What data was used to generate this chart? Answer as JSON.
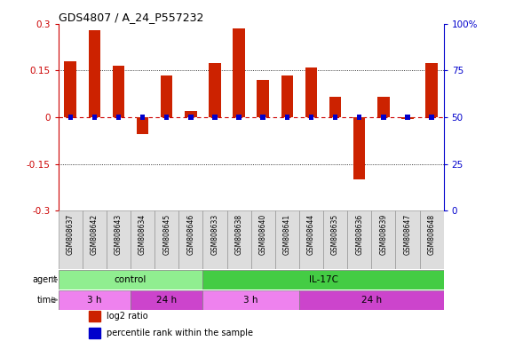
{
  "title": "GDS4807 / A_24_P557232",
  "samples": [
    "GSM808637",
    "GSM808642",
    "GSM808643",
    "GSM808634",
    "GSM808645",
    "GSM808646",
    "GSM808633",
    "GSM808638",
    "GSM808640",
    "GSM808641",
    "GSM808644",
    "GSM808635",
    "GSM808636",
    "GSM808639",
    "GSM808647",
    "GSM808648"
  ],
  "log2_ratio": [
    0.18,
    0.28,
    0.165,
    -0.055,
    0.135,
    0.02,
    0.175,
    0.285,
    0.12,
    0.135,
    0.16,
    0.065,
    -0.2,
    0.065,
    -0.005,
    0.175
  ],
  "percentile_rank": [
    55,
    57,
    56,
    47,
    52,
    48,
    54,
    56,
    53,
    54,
    55,
    47,
    43,
    51,
    47,
    55
  ],
  "agent_groups": [
    {
      "label": "control",
      "start": 0,
      "end": 6,
      "color": "#90EE90"
    },
    {
      "label": "IL-17C",
      "start": 6,
      "end": 16,
      "color": "#44CC44"
    }
  ],
  "time_groups": [
    {
      "label": "3 h",
      "start": 0,
      "end": 3,
      "color": "#EE82EE"
    },
    {
      "label": "24 h",
      "start": 3,
      "end": 6,
      "color": "#CC44CC"
    },
    {
      "label": "3 h",
      "start": 6,
      "end": 10,
      "color": "#EE82EE"
    },
    {
      "label": "24 h",
      "start": 10,
      "end": 16,
      "color": "#CC44CC"
    }
  ],
  "bar_color_red": "#CC2200",
  "bar_color_blue": "#0000CC",
  "ylim": [
    -0.3,
    0.3
  ],
  "y2lim": [
    0,
    100
  ],
  "yticks": [
    -0.3,
    -0.15,
    0.0,
    0.15,
    0.3
  ],
  "y2ticks": [
    0,
    25,
    50,
    75,
    100
  ],
  "ytick_labels": [
    "-0.3",
    "-0.15",
    "0",
    "0.15",
    "0.3"
  ],
  "y2tick_labels": [
    "0",
    "25",
    "50",
    "75",
    "100%"
  ],
  "dotted_lines": [
    -0.15,
    0.15
  ],
  "bar_width": 0.5,
  "percentile_bar_width": 0.2,
  "percentile_bar_height": 0.018,
  "agent_row_label": "agent",
  "time_row_label": "time",
  "legend_items": [
    {
      "color": "#CC2200",
      "label": "log2 ratio"
    },
    {
      "color": "#0000CC",
      "label": "percentile rank within the sample"
    }
  ],
  "label_color_left": "#CC0000",
  "label_color_right": "#0000CC",
  "background_color": "#FFFFFF",
  "sample_box_color": "#DDDDDD",
  "sample_box_edge": "#999999"
}
